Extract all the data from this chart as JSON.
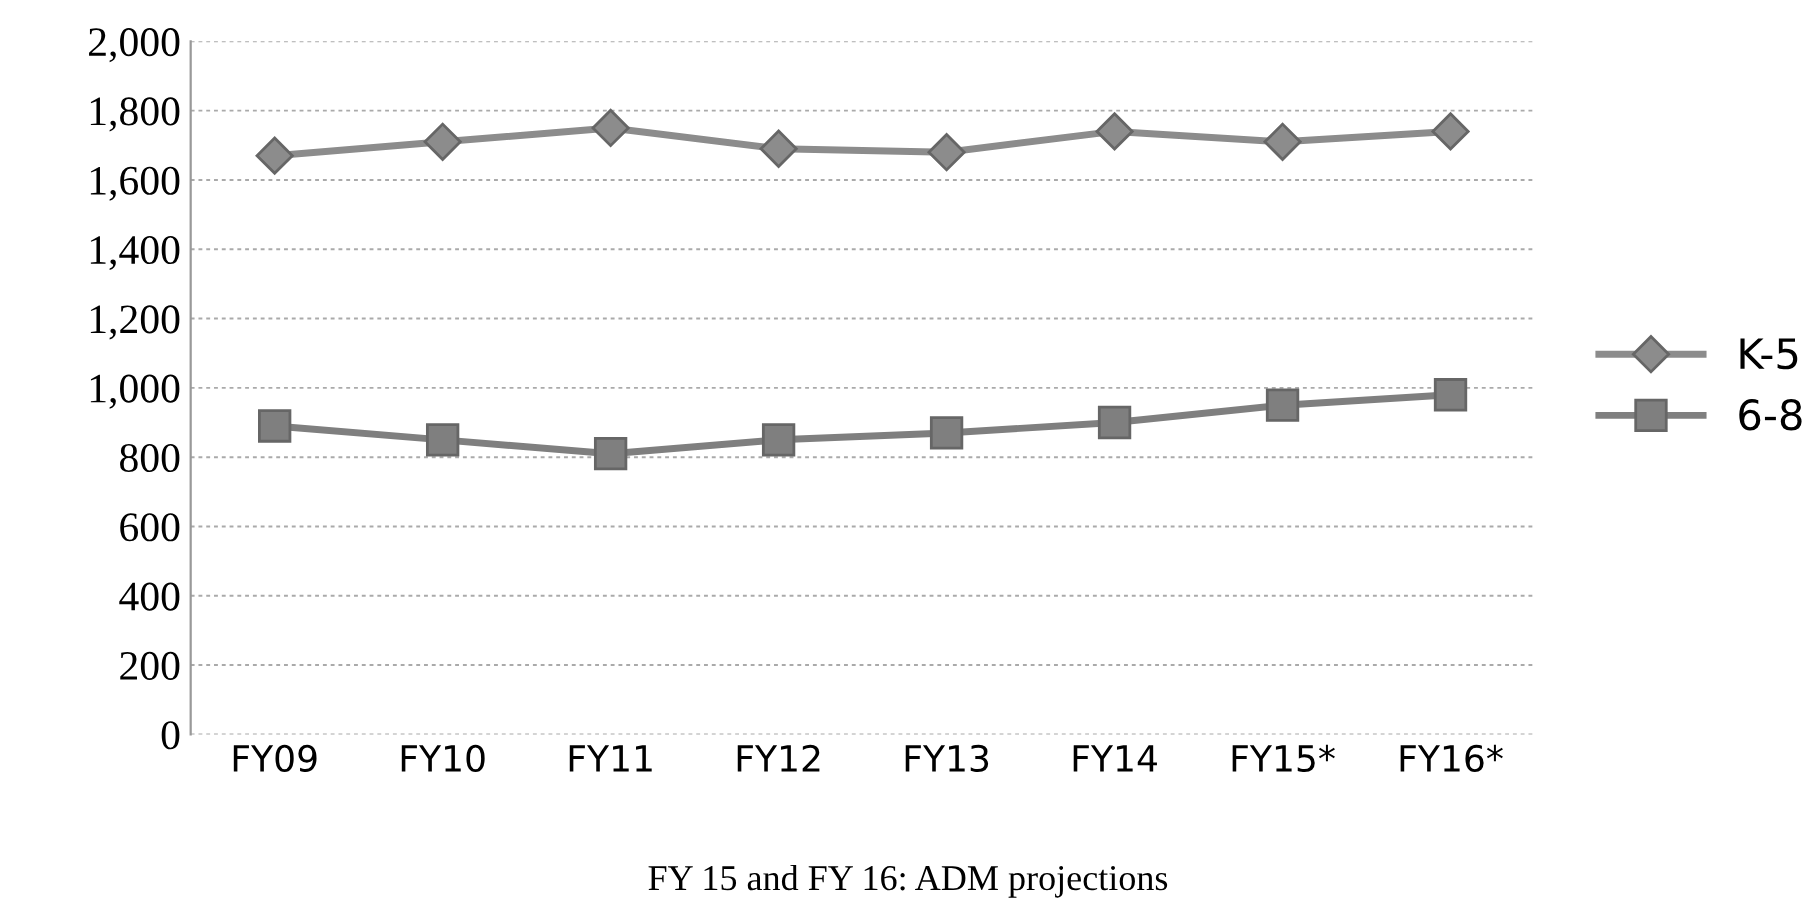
{
  "chart_data": {
    "type": "line",
    "categories": [
      "FY09",
      "FY10",
      "FY11",
      "FY12",
      "FY13",
      "FY14",
      "FY15*",
      "FY16*"
    ],
    "series": [
      {
        "name": "K-5",
        "color": "#8c8c8c",
        "marker": "diamond",
        "values": [
          1670,
          1710,
          1750,
          1690,
          1680,
          1740,
          1710,
          1740
        ]
      },
      {
        "name": "6-8",
        "color": "#7f7f7f",
        "marker": "square",
        "values": [
          890,
          850,
          810,
          850,
          870,
          900,
          950,
          980
        ]
      }
    ],
    "ylim": [
      0,
      2000
    ],
    "yticks": [
      0,
      {
        "value": 200,
        "label": "200"
      },
      {
        "value": 400,
        "label": "400"
      },
      {
        "value": 600,
        "label": "600"
      },
      {
        "value": 800,
        "label": "800"
      },
      {
        "value": 1000,
        "label": "1,000"
      },
      {
        "value": 1200,
        "label": "1,200"
      },
      {
        "value": 1400,
        "label": "1,400"
      },
      {
        "value": 1600,
        "label": "1,600"
      },
      {
        "value": 1800,
        "label": "1,800"
      },
      {
        "value": 2000,
        "label": "2,000"
      }
    ],
    "grid": "y",
    "legend": "right",
    "line_style": "solid",
    "annotations": [
      "FY 15 and FY 16: ADM projections"
    ]
  }
}
